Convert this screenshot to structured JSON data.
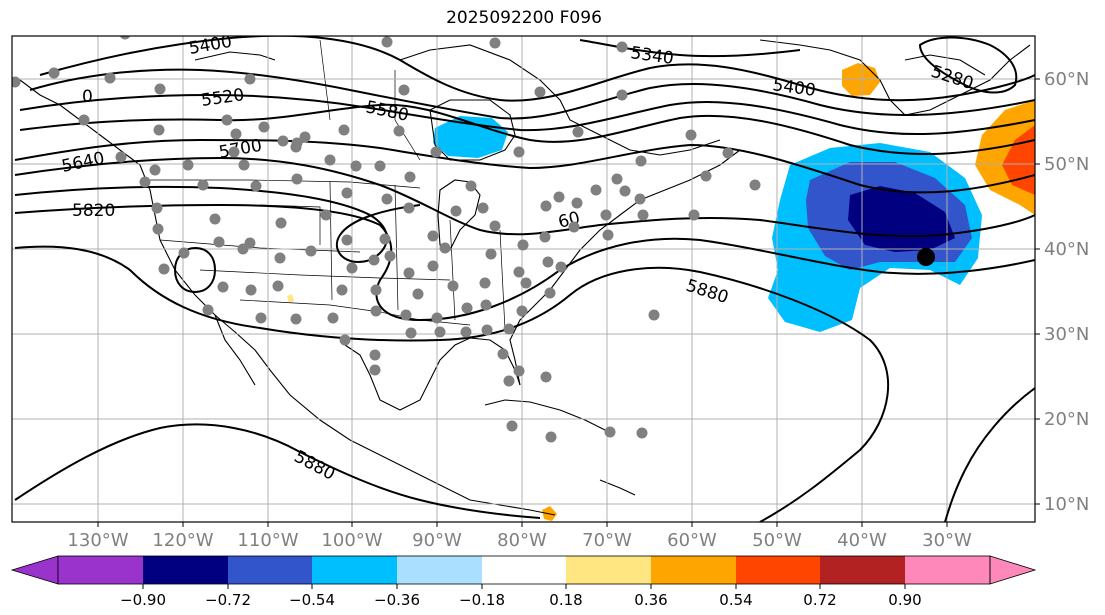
{
  "title": "2025092200 F096",
  "lon_labels": [
    "130°W",
    "120°W",
    "110°W",
    "100°W",
    "90°W",
    "80°W",
    "70°W",
    "60°W",
    "50°W",
    "40°W",
    "30°W"
  ],
  "lat_labels": [
    "60°N",
    "50°N",
    "40°N",
    "30°N",
    "20°N",
    "10°N"
  ],
  "contour_labels": {
    "c5400a": "5400",
    "c5400b": "5400",
    "c5520": "5520",
    "c5580": "5580",
    "c5640": "5640",
    "c5700": "5700",
    "c5820": "5820",
    "c5880a": "5880",
    "c5880b": "5880",
    "c5280": "5280",
    "c5340": "5340",
    "c60": "60",
    "c0": "0"
  },
  "colorbar": {
    "colors": [
      "#9933cc",
      "#000080",
      "#3355cc",
      "#00bfff",
      "#aadfff",
      "#ffffff",
      "#ffe680",
      "#ffa500",
      "#ff4500",
      "#b22222",
      "#ff88bb"
    ],
    "ticks": [
      "−0.90",
      "−0.72",
      "−0.54",
      "−0.36",
      "−0.18",
      "0.18",
      "0.36",
      "0.54",
      "0.72",
      "0.90"
    ]
  },
  "colors": {
    "station_dot": "#808080",
    "marker_dot": "#000000",
    "grid": "#b0b0b0",
    "contour": "#000000"
  }
}
